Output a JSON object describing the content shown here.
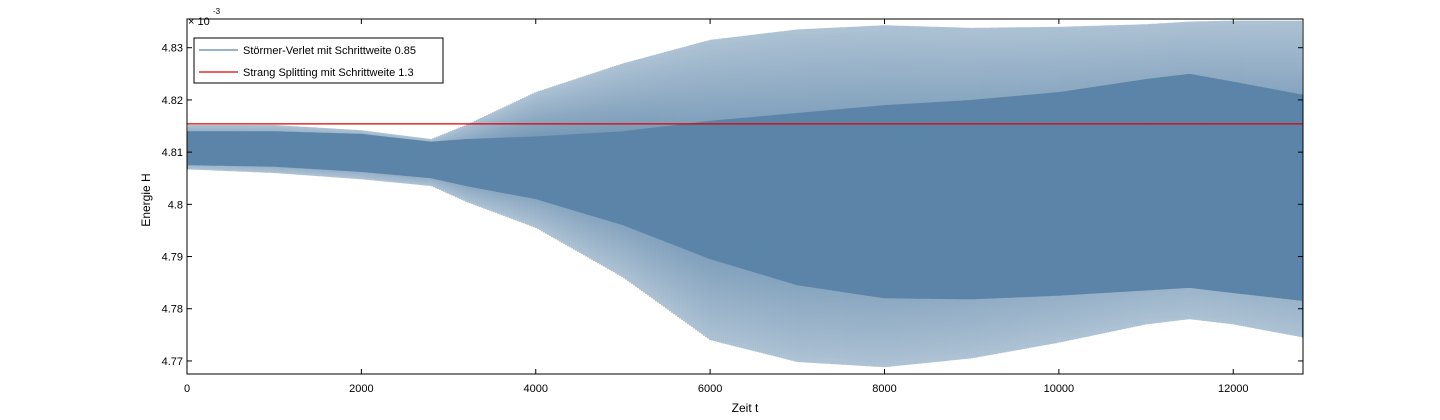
{
  "chart_data": {
    "type": "line",
    "xlabel": "Zeit t",
    "ylabel": "Energie H",
    "y_scale_label": "× 10",
    "y_scale_exponent": "-3",
    "xlim": [
      0,
      12800
    ],
    "ylim": [
      4.7675,
      4.8355
    ],
    "x_ticks": [
      0,
      2000,
      4000,
      6000,
      8000,
      10000,
      12000
    ],
    "x_tick_labels": [
      "0",
      "2000",
      "4000",
      "6000",
      "8000",
      "10000",
      "12000"
    ],
    "y_ticks": [
      4.77,
      4.78,
      4.79,
      4.8,
      4.81,
      4.82,
      4.83
    ],
    "y_tick_labels": [
      "4.77",
      "4.78",
      "4.79",
      "4.8",
      "4.81",
      "4.82",
      "4.83"
    ],
    "grid": false,
    "legend_position": "top-left",
    "series": [
      {
        "name": "Störmer-Verlet mit Schrittweite 0.85",
        "color": "#5b84a8",
        "style": "oscillation envelope",
        "t": [
          0,
          1000,
          2000,
          2800,
          3200,
          4000,
          5000,
          6000,
          7000,
          8000,
          9000,
          10000,
          11000,
          11500,
          12000,
          12800
        ],
        "upper": [
          4.8152,
          4.8152,
          4.8142,
          4.8125,
          4.8152,
          4.8215,
          4.827,
          4.8315,
          4.8335,
          4.8343,
          4.8338,
          4.834,
          4.8345,
          4.835,
          4.8352,
          4.8352
        ],
        "lower": [
          4.8067,
          4.806,
          4.8048,
          4.8035,
          4.8005,
          4.7955,
          4.786,
          4.774,
          4.7698,
          4.7688,
          4.7705,
          4.7735,
          4.777,
          4.778,
          4.777,
          4.7745
        ],
        "dense_upper": [
          4.814,
          4.814,
          4.8135,
          4.812,
          4.8125,
          4.813,
          4.814,
          4.816,
          4.8175,
          4.819,
          4.82,
          4.8215,
          4.824,
          4.825,
          4.8235,
          4.821
        ],
        "dense_lower": [
          4.8075,
          4.8072,
          4.8062,
          4.805,
          4.8035,
          4.801,
          4.796,
          4.7895,
          4.7845,
          4.782,
          4.7818,
          4.7825,
          4.7835,
          4.784,
          4.783,
          4.7815
        ]
      },
      {
        "name": "Strang Splitting mit Schrittweite 1.3",
        "color": "#e00000",
        "style": "line",
        "t": [
          0,
          12800
        ],
        "values": [
          4.8154,
          4.8154
        ]
      }
    ]
  }
}
